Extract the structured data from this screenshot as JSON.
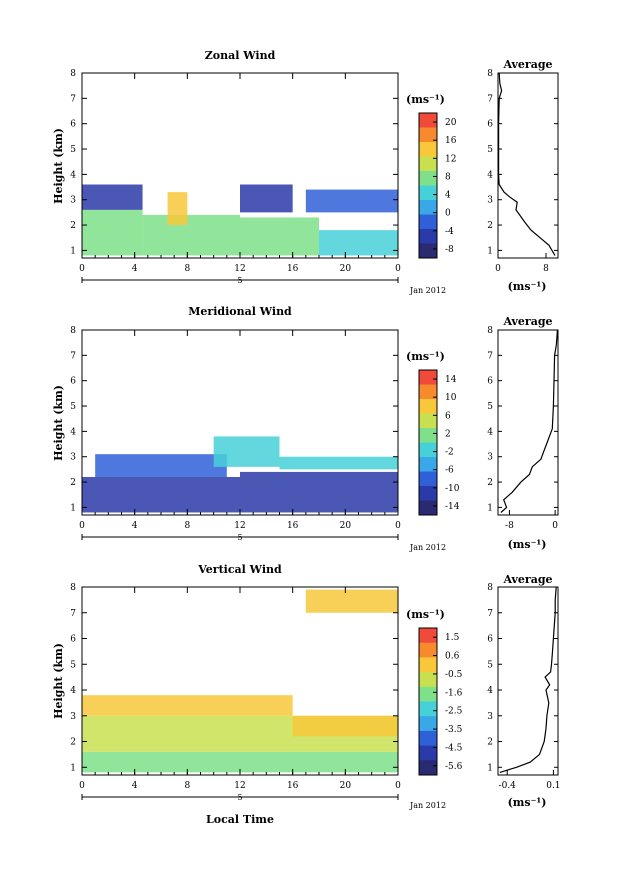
{
  "date_label": "Jan 2012",
  "x_day_label": "5",
  "x_ticks": [
    "0",
    "4",
    "8",
    "12",
    "16",
    "20",
    "0"
  ],
  "y_ticks": [
    "1",
    "2",
    "3",
    "4",
    "5",
    "6",
    "7",
    "8"
  ],
  "y_label": "Height (km)",
  "x_label": "Local Time",
  "unit_label": "(ms⁻¹)",
  "avg_title": "Average",
  "panels": [
    {
      "title": "Zonal Wind",
      "colorbar_ticks": [
        "20",
        "16",
        "12",
        "8",
        "4",
        "0",
        "-4",
        "-8"
      ],
      "avg_xticks": [
        "0",
        "8"
      ],
      "avg_xrange": [
        0,
        10
      ],
      "colors": [
        "#f04a3a",
        "#f88a2e",
        "#f8c83a",
        "#c8e050",
        "#7ee08a",
        "#46d0d8",
        "#3aa8e8",
        "#3060d8",
        "#2a3aa8",
        "#2a2a70"
      ]
    },
    {
      "title": "Meridional Wind",
      "colorbar_ticks": [
        "14",
        "10",
        "6",
        "2",
        "-2",
        "-6",
        "-10",
        "-14"
      ],
      "avg_xticks": [
        "-8",
        "0"
      ],
      "avg_xrange": [
        -10,
        0.5
      ],
      "colors": [
        "#f04a3a",
        "#f88a2e",
        "#f8c83a",
        "#c8e050",
        "#7ee08a",
        "#46d0d8",
        "#3aa8e8",
        "#3060d8",
        "#2a3aa8",
        "#2a2a70"
      ]
    },
    {
      "title": "Vertical Wind",
      "colorbar_ticks": [
        "1.5",
        "0.6",
        "-0.5",
        "-1.6",
        "-2.5",
        "-3.5",
        "-4.5",
        "-5.6"
      ],
      "avg_xticks": [
        "-0.4",
        "0.1"
      ],
      "avg_xrange": [
        -0.5,
        0.15
      ],
      "colors": [
        "#f04a3a",
        "#f88a2e",
        "#f8c83a",
        "#c8e050",
        "#7ee08a",
        "#46d0d8",
        "#3aa8e8",
        "#3060d8",
        "#2a3aa8",
        "#2a2a70"
      ]
    }
  ],
  "chart_data": [
    {
      "type": "heatmap",
      "title": "Zonal Wind",
      "xlabel": "",
      "ylabel": "Height (km)",
      "xlim": [
        0,
        24
      ],
      "ylim": [
        0.7,
        8
      ],
      "clim": [
        -8,
        22
      ],
      "regions": [
        {
          "x0": 0,
          "x1": 4.6,
          "y0": 0.8,
          "y1": 2.6,
          "value": 8
        },
        {
          "x0": 0,
          "x1": 4.6,
          "y0": 2.6,
          "y1": 3.6,
          "value": -2
        },
        {
          "x0": 4.6,
          "x1": 12,
          "y0": 0.8,
          "y1": 2.4,
          "value": 10
        },
        {
          "x0": 6.5,
          "x1": 8,
          "y0": 2.0,
          "y1": 3.3,
          "value": 16
        },
        {
          "x0": 12,
          "x1": 18,
          "y0": 0.8,
          "y1": 2.3,
          "value": 9
        },
        {
          "x0": 12,
          "x1": 16,
          "y0": 2.5,
          "y1": 3.6,
          "value": -2
        },
        {
          "x0": 18,
          "x1": 24,
          "y0": 0.8,
          "y1": 1.8,
          "value": 6
        },
        {
          "x0": 17,
          "x1": 24,
          "y0": 2.5,
          "y1": 3.4,
          "value": -1
        }
      ],
      "average_profile": {
        "xlabel": "(ms⁻¹)",
        "height": [
          0.8,
          1.0,
          1.2,
          1.5,
          1.8,
          2.1,
          2.4,
          2.6,
          2.9,
          3.1,
          3.3,
          3.6,
          4.0,
          5.0,
          6.0,
          7.0,
          7.3,
          7.6,
          8.0
        ],
        "value": [
          9.5,
          9.0,
          8.5,
          7.0,
          5.5,
          4.5,
          3.6,
          3.0,
          3.2,
          2.0,
          1.0,
          0.2,
          0.1,
          0.1,
          0.1,
          0.2,
          0.6,
          0.3,
          0.2
        ]
      }
    },
    {
      "type": "heatmap",
      "title": "Meridional Wind",
      "xlabel": "",
      "ylabel": "Height (km)",
      "xlim": [
        0,
        24
      ],
      "ylim": [
        0.7,
        8
      ],
      "clim": [
        -14,
        16
      ],
      "regions": [
        {
          "x0": 0,
          "x1": 12,
          "y0": 0.8,
          "y1": 2.2,
          "value": -10
        },
        {
          "x0": 1,
          "x1": 11,
          "y0": 2.2,
          "y1": 3.1,
          "value": -7
        },
        {
          "x0": 12,
          "x1": 24,
          "y0": 0.8,
          "y1": 2.4,
          "value": -8
        },
        {
          "x0": 10,
          "x1": 15,
          "y0": 2.6,
          "y1": 3.8,
          "value": 1
        },
        {
          "x0": 15,
          "x1": 24,
          "y0": 2.5,
          "y1": 3.0,
          "value": 1
        }
      ],
      "average_profile": {
        "xlabel": "(ms⁻¹)",
        "height": [
          0.8,
          1.0,
          1.3,
          1.6,
          2.0,
          2.3,
          2.6,
          2.9,
          3.2,
          3.5,
          3.8,
          4.1,
          5.0,
          6.0,
          7.0,
          7.4,
          7.7,
          8.0
        ],
        "value": [
          -9.5,
          -8.5,
          -9.0,
          -7.5,
          -6.0,
          -4.5,
          -4.0,
          -2.5,
          -2.0,
          -1.5,
          -1.0,
          -0.5,
          -0.3,
          -0.2,
          -0.1,
          0.2,
          0.3,
          0.4
        ]
      }
    },
    {
      "type": "heatmap",
      "title": "Vertical Wind",
      "xlabel": "Local Time",
      "ylabel": "Height (km)",
      "xlim": [
        0,
        24
      ],
      "ylim": [
        0.7,
        8
      ],
      "clim": [
        -6,
        2
      ],
      "regions": [
        {
          "x0": 0,
          "x1": 24,
          "y0": 0.8,
          "y1": 1.6,
          "value": -1.2
        },
        {
          "x0": 0,
          "x1": 24,
          "y0": 1.6,
          "y1": 3.0,
          "value": -0.6
        },
        {
          "x0": 0,
          "x1": 16,
          "y0": 3.0,
          "y1": 3.8,
          "value": 0.3
        },
        {
          "x0": 16,
          "x1": 24,
          "y0": 2.2,
          "y1": 3.0,
          "value": 0.3
        },
        {
          "x0": 17,
          "x1": 24,
          "y0": 7.0,
          "y1": 7.9,
          "value": 0.2
        }
      ],
      "average_profile": {
        "xlabel": "(ms⁻¹)",
        "height": [
          0.8,
          1.0,
          1.2,
          1.5,
          2.0,
          2.5,
          3.0,
          3.5,
          4.0,
          4.2,
          4.5,
          4.7,
          5.0,
          5.5,
          6.0,
          6.5,
          7.0,
          7.5,
          8.0
        ],
        "value": [
          -0.48,
          -0.3,
          -0.15,
          -0.05,
          0.0,
          0.02,
          0.03,
          0.05,
          0.02,
          0.06,
          0.01,
          0.07,
          0.08,
          0.09,
          0.1,
          0.11,
          0.12,
          0.12,
          0.13
        ]
      }
    }
  ]
}
